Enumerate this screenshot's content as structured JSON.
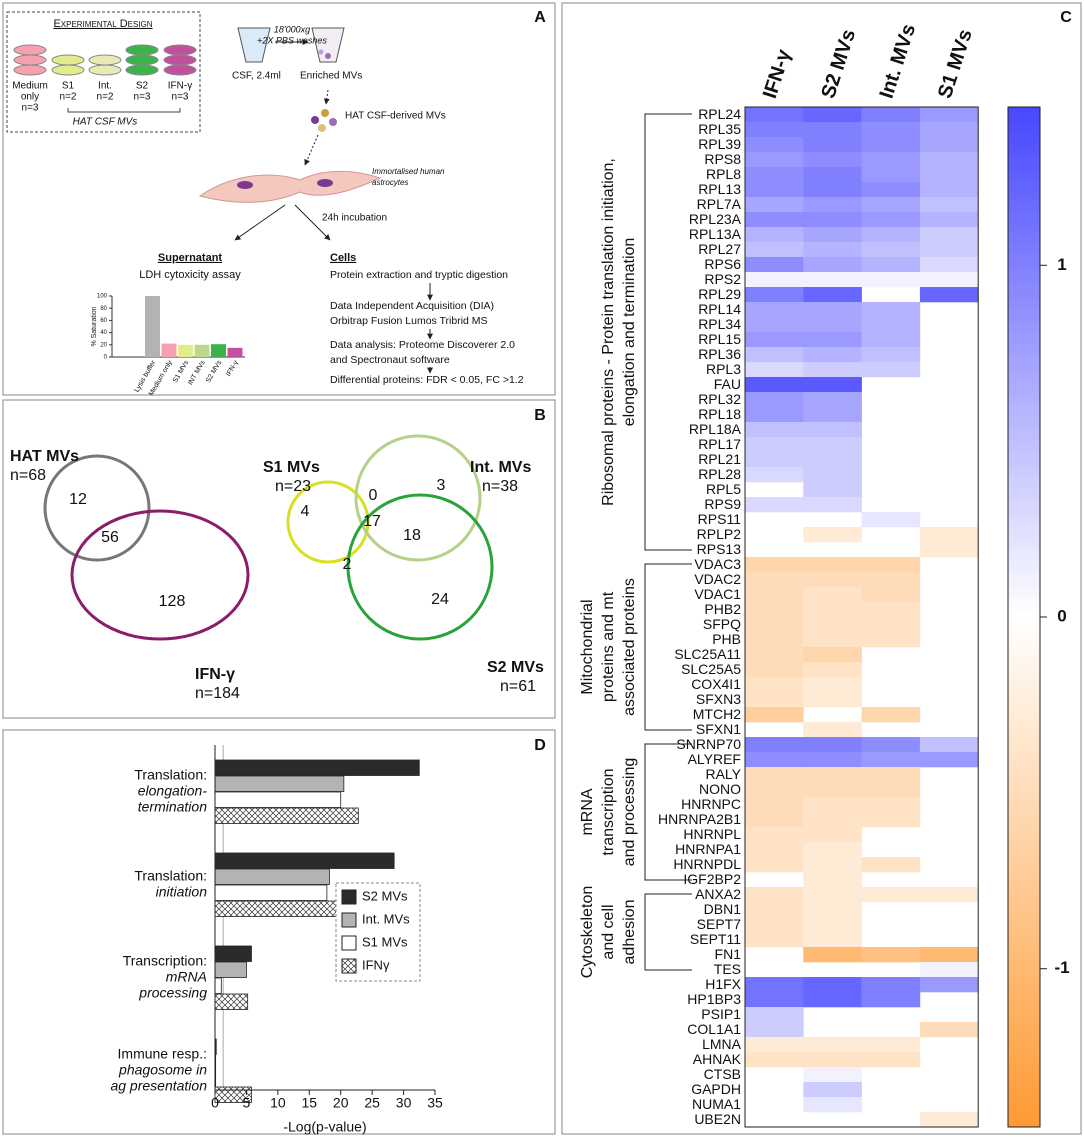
{
  "panel_labels": [
    "A",
    "B",
    "C",
    "D"
  ],
  "panel_a": {
    "design": {
      "title": "Experimental Design",
      "groups": [
        {
          "label": [
            "Medium",
            "only"
          ],
          "n": "n=3"
        },
        {
          "label": [
            "S1"
          ],
          "n": "n=2"
        },
        {
          "label": [
            "Int."
          ],
          "n": "n=2"
        },
        {
          "label": [
            "S2"
          ],
          "n": "n=3"
        },
        {
          "label": [
            "IFN-γ"
          ],
          "n": "n=3"
        }
      ],
      "footer": "HAT CSF MVs"
    },
    "csf": "CSF, 2.4ml",
    "spin": [
      "18'000xg",
      "+2X PBS washes"
    ],
    "enriched": "Enriched MVs",
    "derived": "HAT CSF-derived MVs",
    "astrocytes": [
      "Immortalised human",
      "astrocytes"
    ],
    "incubation": "24h incubation",
    "supernatant": {
      "title": "Supernatant",
      "assay": "LDH cytoxicity assay"
    },
    "cells": {
      "title": "Cells",
      "steps": [
        [
          "Protein extraction and tryptic digestion"
        ],
        [
          "Data Independent Acquisition (DIA)",
          "Orbitrap Fusion Lumos Tribrid MS"
        ],
        [
          "Data analysis: Proteome Discoverer 2.0",
          "and Spectronaut software"
        ],
        [
          "Differential proteins: FDR < 0.05, FC >1.2"
        ]
      ]
    }
  },
  "panel_b": {
    "left": {
      "a": {
        "name": "HAT MVs",
        "n": "n=68"
      },
      "b": {
        "name": "IFN-γ",
        "n": "n=184"
      },
      "counts": [
        12,
        56,
        128
      ]
    },
    "right": {
      "a": {
        "name": "S1 MVs",
        "n": "n=23"
      },
      "b": {
        "name": "Int. MVs",
        "n": "n=38"
      },
      "c": {
        "name": "S2 MVs",
        "n": "n=61"
      },
      "counts": [
        0,
        3,
        4,
        17,
        18,
        2,
        24
      ]
    }
  },
  "chart_data": [
    {
      "type": "bar",
      "ylabel": "% Saturation",
      "categories": [
        "Lysis buffer",
        "Medium only",
        "S1 MVs",
        "INT MVs",
        "S2 MVs",
        "IFN-γ"
      ],
      "values": [
        100,
        22,
        20,
        20,
        21,
        15
      ],
      "colors": [
        "#b3b3b3",
        "#f7a1b0",
        "#e3ec8c",
        "#b9d98c",
        "#3bb34a",
        "#c2509e"
      ],
      "ylim": [
        0,
        100
      ],
      "yticks": [
        0,
        20,
        40,
        60,
        80,
        100
      ]
    },
    {
      "type": "heatmap",
      "columns": [
        "IFN-γ",
        "S2 MVs",
        "Int. MVs",
        "S1 MVs"
      ],
      "rows": [
        "RPL24",
        "RPL35",
        "RPL39",
        "RPS8",
        "RPL8",
        "RPL13",
        "RPL7A",
        "RPL23A",
        "RPL13A",
        "RPL27",
        "RPS6",
        "RPS2",
        "RPL29",
        "RPL14",
        "RPL34",
        "RPL15",
        "RPL36",
        "RPL3",
        "FAU",
        "RPL32",
        "RPL18",
        "RPL18A",
        "RPL17",
        "RPL21",
        "RPL28",
        "RPL5",
        "RPS9",
        "RPS11",
        "RPLP2",
        "RPS13",
        "VDAC3",
        "VDAC2",
        "VDAC1",
        "PHB2",
        "SFPQ",
        "PHB",
        "SLC25A11",
        "SLC25A5",
        "COX4I1",
        "SFXN3",
        "MTCH2",
        "SFXN1",
        "SNRNP70",
        "ALYREF",
        "RALY",
        "NONO",
        "HNRNPC",
        "HNRNPA2B1",
        "HNRNPL",
        "HNRNPA1",
        "HNRNPDL",
        "IGF2BP2",
        "ANXA2",
        "DBN1",
        "SEPT7",
        "SEPT11",
        "FN1",
        "TES",
        "H1FX",
        "HP1BP3",
        "PSIP1",
        "COL1A1",
        "LMNA",
        "AHNAK",
        "CTSB",
        "GAPDH",
        "NUMA1",
        "UBE2N"
      ],
      "values": [
        [
          1.1,
          1.2,
          1.0,
          0.8
        ],
        [
          1.0,
          1.0,
          0.9,
          0.7
        ],
        [
          0.9,
          1.0,
          0.9,
          0.7
        ],
        [
          0.8,
          0.9,
          0.8,
          0.6
        ],
        [
          0.9,
          1.0,
          0.8,
          0.6
        ],
        [
          0.9,
          1.0,
          0.9,
          0.6
        ],
        [
          0.7,
          0.8,
          0.7,
          0.5
        ],
        [
          0.9,
          0.9,
          0.8,
          0.6
        ],
        [
          0.6,
          0.7,
          0.6,
          0.4
        ],
        [
          0.5,
          0.6,
          0.5,
          0.4
        ],
        [
          0.9,
          0.7,
          0.6,
          0.3
        ],
        [
          0.1,
          0.1,
          0.1,
          0.1
        ],
        [
          1.0,
          1.2,
          null,
          1.2
        ],
        [
          0.7,
          0.7,
          0.6,
          null
        ],
        [
          0.7,
          0.7,
          0.6,
          null
        ],
        [
          0.8,
          0.8,
          0.6,
          null
        ],
        [
          0.5,
          0.6,
          0.5,
          null
        ],
        [
          0.3,
          0.4,
          0.4,
          null
        ],
        [
          1.3,
          1.3,
          null,
          null
        ],
        [
          0.8,
          0.7,
          null,
          null
        ],
        [
          0.8,
          0.7,
          null,
          null
        ],
        [
          0.5,
          0.5,
          null,
          null
        ],
        [
          0.4,
          0.4,
          null,
          null
        ],
        [
          0.4,
          0.4,
          null,
          null
        ],
        [
          0.3,
          0.4,
          null,
          null
        ],
        [
          null,
          0.4,
          null,
          null
        ],
        [
          0.3,
          0.3,
          null,
          null
        ],
        [
          null,
          null,
          0.2,
          null
        ],
        [
          null,
          -0.3,
          null,
          -0.3
        ],
        [
          null,
          null,
          null,
          -0.3
        ],
        [
          -0.6,
          -0.6,
          -0.6,
          null
        ],
        [
          -0.5,
          -0.5,
          -0.5,
          null
        ],
        [
          -0.5,
          -0.4,
          -0.5,
          null
        ],
        [
          -0.5,
          -0.4,
          -0.4,
          null
        ],
        [
          -0.5,
          -0.4,
          -0.4,
          null
        ],
        [
          -0.5,
          -0.4,
          -0.4,
          null
        ],
        [
          -0.5,
          -0.6,
          null,
          null
        ],
        [
          -0.5,
          -0.4,
          null,
          null
        ],
        [
          -0.4,
          -0.3,
          null,
          null
        ],
        [
          -0.4,
          -0.3,
          null,
          null
        ],
        [
          -0.7,
          null,
          -0.6,
          null
        ],
        [
          null,
          -0.3,
          null,
          null
        ],
        [
          1.0,
          1.0,
          0.9,
          0.5
        ],
        [
          0.9,
          0.9,
          0.8,
          0.8
        ],
        [
          -0.5,
          -0.5,
          -0.5,
          null
        ],
        [
          -0.5,
          -0.5,
          -0.5,
          null
        ],
        [
          -0.5,
          -0.4,
          -0.4,
          null
        ],
        [
          -0.5,
          -0.4,
          -0.4,
          null
        ],
        [
          -0.4,
          -0.4,
          null,
          null
        ],
        [
          -0.4,
          -0.3,
          null,
          null
        ],
        [
          -0.4,
          -0.3,
          -0.4,
          null
        ],
        [
          null,
          -0.3,
          null,
          null
        ],
        [
          -0.4,
          -0.3,
          -0.3,
          -0.3
        ],
        [
          -0.4,
          -0.3,
          null,
          null
        ],
        [
          -0.4,
          -0.3,
          null,
          null
        ],
        [
          -0.4,
          -0.3,
          null,
          null
        ],
        [
          null,
          -1.0,
          -0.9,
          -1.0
        ],
        [
          null,
          null,
          null,
          0.1
        ],
        [
          1.1,
          1.2,
          1.0,
          0.8
        ],
        [
          1.1,
          1.2,
          1.0,
          null
        ],
        [
          0.4,
          null,
          null,
          null
        ],
        [
          0.4,
          null,
          null,
          -0.5
        ],
        [
          -0.3,
          -0.3,
          -0.3,
          null
        ],
        [
          -0.4,
          -0.4,
          -0.4,
          null
        ],
        [
          null,
          0.1,
          null,
          null
        ],
        [
          null,
          0.4,
          null,
          null
        ],
        [
          null,
          0.2,
          null,
          null
        ],
        [
          null,
          null,
          null,
          -0.3
        ]
      ],
      "zlim": [
        -1.45,
        1.45
      ],
      "zticks": [
        -1,
        0,
        1
      ],
      "colormap": {
        "low": "#ff9a33",
        "mid": "#ffffff",
        "high": "#4747ff"
      },
      "groups": [
        {
          "label": [
            "Ribosomal proteins - Protein translation initiation,",
            "elongation and termination"
          ]
        },
        {
          "label": [
            "Mitochondrial",
            "proteins and mt",
            "associated proteins"
          ]
        },
        {
          "label": [
            "mRNA",
            "transcription",
            "and processing"
          ]
        },
        {
          "label": [
            "Cytoskeleton",
            "and cell",
            "adhesion"
          ]
        }
      ]
    },
    {
      "type": "hbar",
      "categories": [
        [
          "Translation:",
          "elongation-",
          "termination"
        ],
        [
          "Translation:",
          "initiation"
        ],
        [
          "Transcription:",
          "mRNA",
          "processing"
        ],
        [
          "Immune resp.:",
          "phagosome in",
          "ag presentation"
        ]
      ],
      "series": [
        {
          "name": "S2 MVs",
          "color": "#2b2b2b",
          "values": [
            32.5,
            28.5,
            5.8,
            0.2
          ]
        },
        {
          "name": "Int. MVs",
          "color": "#b3b3b3",
          "values": [
            20.5,
            18.2,
            5.0,
            0.1
          ]
        },
        {
          "name": "S1 MVs",
          "color": "#ffffff",
          "values": [
            20.0,
            17.8,
            1.0,
            0.1
          ]
        },
        {
          "name": "IFNγ",
          "color": "#ffffff",
          "pattern": "crosshatch",
          "values": [
            22.8,
            20.8,
            5.2,
            5.8
          ]
        }
      ],
      "xlim": [
        0,
        35
      ],
      "xticks": [
        0,
        5,
        10,
        15,
        20,
        25,
        30,
        35
      ],
      "xlabel": "-Log(p-value)",
      "reference_line": 1.3
    }
  ]
}
